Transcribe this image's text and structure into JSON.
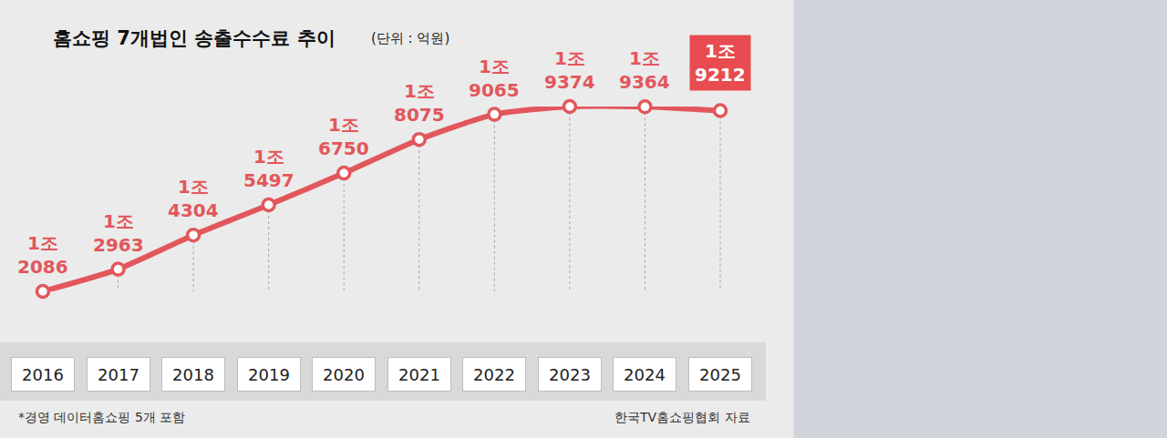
{
  "chart_data": {
    "type": "line",
    "title": "홈쇼핑 7개법인 송출수수료 추이",
    "subtitle": "(단위 : 억원)",
    "categories": [
      "2016",
      "2017",
      "2018",
      "2019",
      "2020",
      "2021",
      "2022",
      "2023",
      "2024",
      "2025"
    ],
    "values": [
      12086,
      12963,
      14304,
      15497,
      16750,
      18075,
      19065,
      19374,
      19364,
      19212
    ],
    "value_labels": [
      "1조\n2086",
      "1조\n2963",
      "1조\n4304",
      "1조\n5497",
      "1조\n6750",
      "1조\n8075",
      "1조\n9065",
      "1조\n9374",
      "1조\n9364",
      "1조\n9212"
    ],
    "color": "#e2575c",
    "marker": "circle",
    "data_labels": true,
    "tick_labels": "x",
    "grid": false,
    "annotations": [
      "*경영 데이터홈쇼핑 5개 포함"
    ],
    "source": "한국TV홈쇼핑협회 자료"
  }
}
